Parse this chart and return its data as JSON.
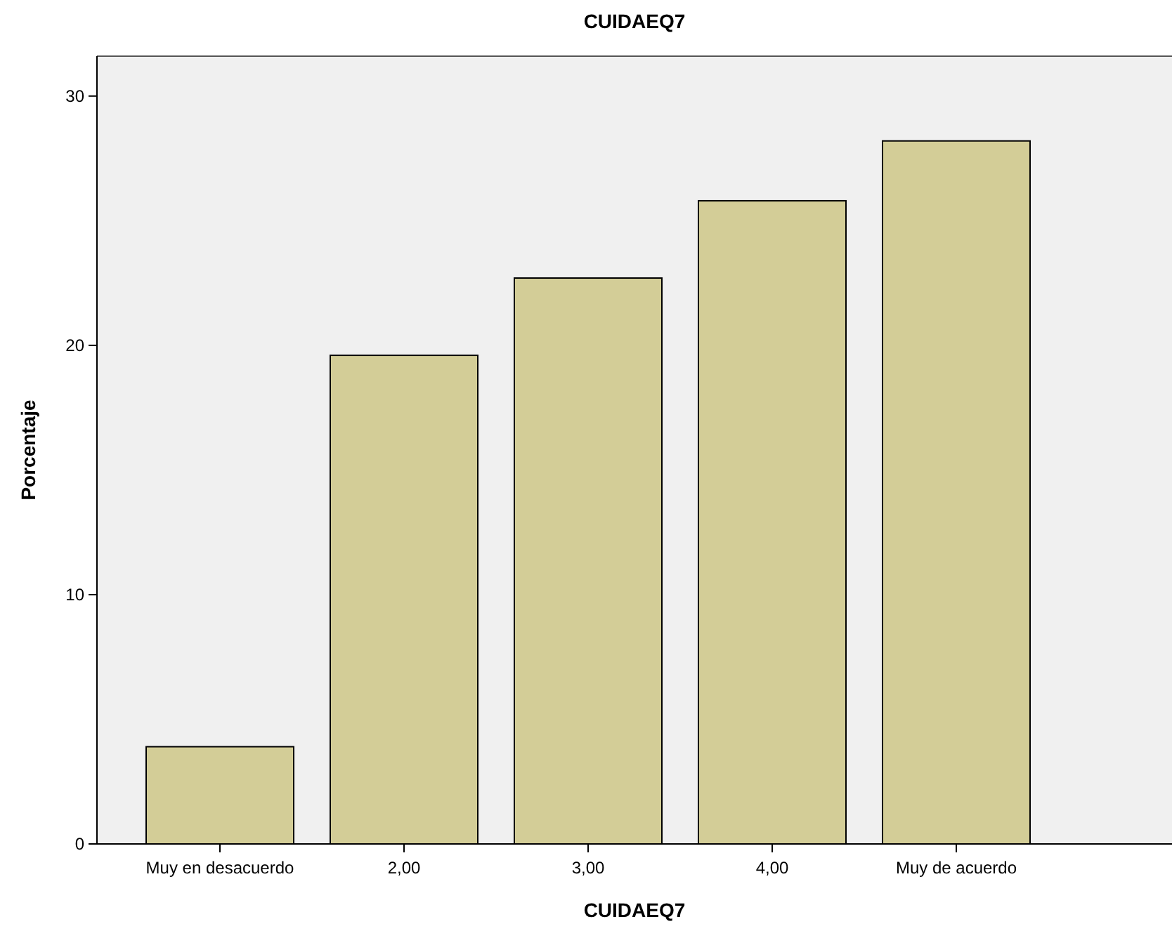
{
  "chart_data": {
    "type": "bar",
    "title": "CUIDAEQ7",
    "xlabel": "CUIDAEQ7",
    "ylabel": "Porcentaje",
    "categories": [
      "Muy en desacuerdo",
      "2,00",
      "3,00",
      "4,00",
      "Muy de acuerdo"
    ],
    "values": [
      3.9,
      19.6,
      22.7,
      25.8,
      28.2
    ],
    "color": "#d3cd97",
    "ylim": [
      0,
      31.6
    ],
    "yticks": [
      0,
      10,
      20,
      30
    ],
    "grid": false
  }
}
